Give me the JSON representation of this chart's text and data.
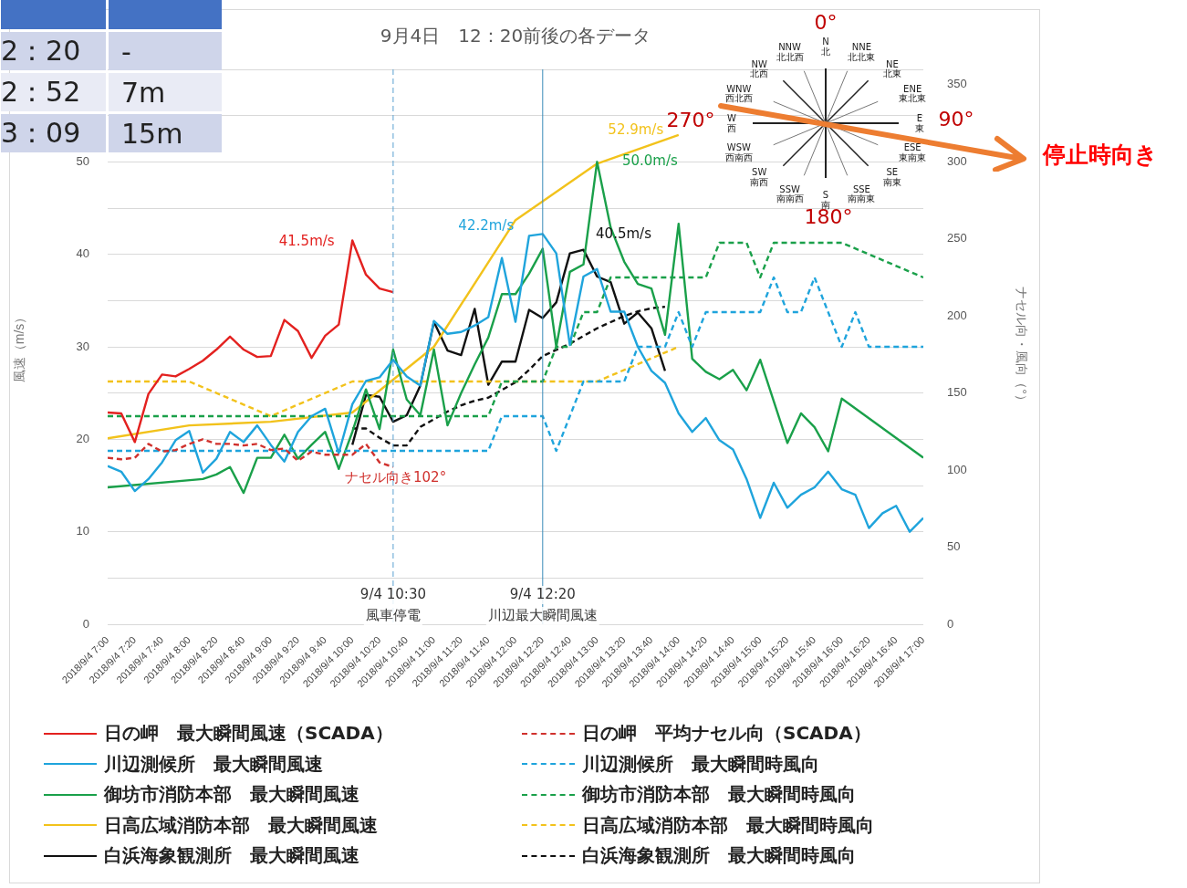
{
  "chart_data": {
    "type": "line",
    "title": "9月4日　12：20前後の各データ",
    "ylabel": "風速（m/s）",
    "y2label": "ナセル向・風向（°）",
    "xlim": [
      "2018-09-04T07:00",
      "2018-09-04T17:00"
    ],
    "xticks": [
      {
        "value": "2018-09-04T07:00",
        "label": "2018/9/4 7:00"
      },
      {
        "value": "2018-09-04T07:20",
        "label": "2018/9/4 7:20"
      },
      {
        "value": "2018-09-04T07:40",
        "label": "2018/9/4 7:40"
      },
      {
        "value": "2018-09-04T08:00",
        "label": "2018/9/4 8:00"
      },
      {
        "value": "2018-09-04T08:20",
        "label": "2018/9/4 8:20"
      },
      {
        "value": "2018-09-04T08:40",
        "label": "2018/9/4 8:40"
      },
      {
        "value": "2018-09-04T09:00",
        "label": "2018/9/4 9:00"
      },
      {
        "value": "2018-09-04T09:20",
        "label": "2018/9/4 9:20"
      },
      {
        "value": "2018-09-04T09:40",
        "label": "2018/9/4 9:40"
      },
      {
        "value": "2018-09-04T10:00",
        "label": "2018/9/4 10:00"
      },
      {
        "value": "2018-09-04T10:20",
        "label": "2018/9/4 10:20"
      },
      {
        "value": "2018-09-04T10:40",
        "label": "2018/9/4 10:40"
      },
      {
        "value": "2018-09-04T11:00",
        "label": "2018/9/4 11:00"
      },
      {
        "value": "2018-09-04T11:20",
        "label": "2018/9/4 11:20"
      },
      {
        "value": "2018-09-04T11:40",
        "label": "2018/9/4 11:40"
      },
      {
        "value": "2018-09-04T12:00",
        "label": "2018/9/4 12:00"
      },
      {
        "value": "2018-09-04T12:20",
        "label": "2018/9/4 12:20"
      },
      {
        "value": "2018-09-04T12:40",
        "label": "2018/9/4 12:40"
      },
      {
        "value": "2018-09-04T13:00",
        "label": "2018/9/4 13:00"
      },
      {
        "value": "2018-09-04T13:20",
        "label": "2018/9/4 13:20"
      },
      {
        "value": "2018-09-04T13:40",
        "label": "2018/9/4 13:40"
      },
      {
        "value": "2018-09-04T14:00",
        "label": "2018/9/4 14:00"
      },
      {
        "value": "2018-09-04T14:20",
        "label": "2018/9/4 14:20"
      },
      {
        "value": "2018-09-04T14:40",
        "label": "2018/9/4 14:40"
      },
      {
        "value": "2018-09-04T15:00",
        "label": "2018/9/4 15:00"
      },
      {
        "value": "2018-09-04T15:20",
        "label": "2018/9/4 15:20"
      },
      {
        "value": "2018-09-04T15:40",
        "label": "2018/9/4 15:40"
      },
      {
        "value": "2018-09-04T16:00",
        "label": "2018/9/4 16:00"
      },
      {
        "value": "2018-09-04T16:20",
        "label": "2018/9/4 16:20"
      },
      {
        "value": "2018-09-04T16:40",
        "label": "2018/9/4 16:40"
      },
      {
        "value": "2018-09-04T17:00",
        "label": "2018/9/4 17:00"
      }
    ],
    "ylim": [
      0,
      60
    ],
    "yticks": [
      0,
      {
        "value": 5,
        "label": null
      },
      10,
      {
        "value": 15,
        "label": null
      },
      20,
      {
        "value": 25,
        "label": null
      },
      30,
      {
        "value": 35,
        "label": null
      },
      40,
      {
        "value": 45,
        "label": null
      },
      50,
      {
        "value": 55,
        "label": null
      },
      {
        "value": 60,
        "label": null
      }
    ],
    "y2lim": [
      0,
      360
    ],
    "y2ticks": [
      0,
      50,
      100,
      150,
      200,
      250,
      300,
      350
    ],
    "grid": "y",
    "legend": "bottom",
    "marker": "none",
    "series": [
      {
        "name": "日の岬　最大瞬間風速（SCADA）",
        "color": "#e3211f",
        "line_style": "solid",
        "x": [
          "2018-09-04T07:00",
          "2018-09-04T07:10",
          "2018-09-04T07:20",
          "2018-09-04T07:30",
          "2018-09-04T07:40",
          "2018-09-04T07:50",
          "2018-09-04T08:00",
          "2018-09-04T08:10",
          "2018-09-04T08:20",
          "2018-09-04T08:30",
          "2018-09-04T08:40",
          "2018-09-04T08:50",
          "2018-09-04T09:00",
          "2018-09-04T09:10",
          "2018-09-04T09:20",
          "2018-09-04T09:30",
          "2018-09-04T09:40",
          "2018-09-04T09:50",
          "2018-09-04T10:00",
          "2018-09-04T10:10",
          "2018-09-04T10:20",
          "2018-09-04T10:30"
        ],
        "values": [
          22.9,
          22.8,
          19.7,
          24.9,
          27.0,
          26.8,
          27.6,
          28.5,
          29.7,
          31.1,
          29.7,
          28.9,
          29.0,
          32.9,
          31.7,
          28.8,
          31.2,
          32.4,
          41.5,
          37.8,
          36.3,
          35.9
        ]
      },
      {
        "name": "日の岬　平均ナセル向（SCADA）",
        "color": "#d0312d",
        "line_style": "dashed",
        "axis": "y2",
        "x": [
          "2018-09-04T07:00",
          "2018-09-04T07:10",
          "2018-09-04T07:20",
          "2018-09-04T07:30",
          "2018-09-04T07:40",
          "2018-09-04T07:50",
          "2018-09-04T08:00",
          "2018-09-04T08:10",
          "2018-09-04T08:20",
          "2018-09-04T08:30",
          "2018-09-04T08:40",
          "2018-09-04T08:50",
          "2018-09-04T09:00",
          "2018-09-04T09:10",
          "2018-09-04T09:20",
          "2018-09-04T09:30",
          "2018-09-04T09:40",
          "2018-09-04T09:50",
          "2018-09-04T10:00",
          "2018-09-04T10:10",
          "2018-09-04T10:20",
          "2018-09-04T10:30"
        ],
        "values": [
          108,
          107,
          108,
          117,
          112,
          113,
          117,
          120,
          117,
          117,
          116,
          117,
          113,
          114,
          106,
          112,
          110,
          110,
          110,
          117,
          105,
          102
        ]
      },
      {
        "name": "川辺測候所　最大瞬間風速",
        "color": "#1fa4dc",
        "line_style": "solid",
        "x": [
          "2018-09-04T07:00",
          "2018-09-04T07:10",
          "2018-09-04T07:20",
          "2018-09-04T07:30",
          "2018-09-04T07:40",
          "2018-09-04T07:50",
          "2018-09-04T08:00",
          "2018-09-04T08:10",
          "2018-09-04T08:20",
          "2018-09-04T08:30",
          "2018-09-04T08:40",
          "2018-09-04T08:50",
          "2018-09-04T09:00",
          "2018-09-04T09:10",
          "2018-09-04T09:20",
          "2018-09-04T09:30",
          "2018-09-04T09:40",
          "2018-09-04T09:50",
          "2018-09-04T10:00",
          "2018-09-04T10:10",
          "2018-09-04T10:20",
          "2018-09-04T10:30",
          "2018-09-04T10:40",
          "2018-09-04T10:50",
          "2018-09-04T11:00",
          "2018-09-04T11:10",
          "2018-09-04T11:20",
          "2018-09-04T11:30",
          "2018-09-04T11:40",
          "2018-09-04T11:50",
          "2018-09-04T12:00",
          "2018-09-04T12:10",
          "2018-09-04T12:20",
          "2018-09-04T12:30",
          "2018-09-04T12:40",
          "2018-09-04T12:50",
          "2018-09-04T13:00",
          "2018-09-04T13:10",
          "2018-09-04T13:20",
          "2018-09-04T13:30",
          "2018-09-04T13:40",
          "2018-09-04T13:50",
          "2018-09-04T14:00",
          "2018-09-04T14:10",
          "2018-09-04T14:20",
          "2018-09-04T14:30",
          "2018-09-04T14:40",
          "2018-09-04T14:50",
          "2018-09-04T15:00",
          "2018-09-04T15:10",
          "2018-09-04T15:20",
          "2018-09-04T15:30",
          "2018-09-04T15:40",
          "2018-09-04T15:50",
          "2018-09-04T16:00",
          "2018-09-04T16:10",
          "2018-09-04T16:20",
          "2018-09-04T16:30",
          "2018-09-04T16:40",
          "2018-09-04T16:50",
          "2018-09-04T17:00"
        ],
        "values": [
          17.1,
          16.5,
          14.4,
          15.7,
          17.5,
          19.9,
          20.9,
          16.4,
          17.9,
          20.8,
          19.7,
          21.5,
          19.4,
          17.6,
          20.8,
          22.5,
          23.3,
          18.5,
          23.8,
          26.3,
          26.7,
          28.6,
          26.8,
          25.8,
          32.8,
          31.4,
          31.6,
          32.3,
          33.2,
          39.6,
          32.7,
          42.0,
          42.2,
          40.1,
          30.2,
          37.6,
          38.4,
          33.8,
          33.8,
          30.0,
          27.4,
          26.1,
          22.8,
          20.8,
          22.3,
          19.9,
          18.9,
          15.7,
          11.5,
          15.3,
          12.6,
          14.0,
          14.8,
          16.5,
          14.6,
          14.0,
          10.4,
          12.0,
          12.8,
          10.0,
          11.5
        ]
      },
      {
        "name": "川辺測候所　最大瞬間時風向",
        "color": "#1fa4dc",
        "line_style": "dashed",
        "axis": "y2",
        "x": [
          "2018-09-04T07:00",
          "2018-09-04T11:40",
          "2018-09-04T11:50",
          "2018-09-04T12:20",
          "2018-09-04T12:30",
          "2018-09-04T12:40",
          "2018-09-04T12:50",
          "2018-09-04T13:20",
          "2018-09-04T13:30",
          "2018-09-04T13:50",
          "2018-09-04T14:00",
          "2018-09-04T14:10",
          "2018-09-04T14:20",
          "2018-09-04T15:00",
          "2018-09-04T15:10",
          "2018-09-04T15:20",
          "2018-09-04T15:30",
          "2018-09-04T15:40",
          "2018-09-04T15:50",
          "2018-09-04T16:00",
          "2018-09-04T16:10",
          "2018-09-04T16:20",
          "2018-09-04T17:00"
        ],
        "values": [
          112.5,
          112.5,
          135,
          135,
          112.5,
          135,
          157.5,
          157.5,
          180,
          180,
          202.5,
          180,
          202.5,
          202.5,
          225,
          202.5,
          202.5,
          225,
          202.5,
          180,
          202.5,
          180,
          180
        ]
      },
      {
        "name": "御坊市消防本部　最大瞬間風速",
        "color": "#1aa04a",
        "line_style": "solid",
        "x": [
          "2018-09-04T07:00",
          "2018-09-04T08:10",
          "2018-09-04T08:20",
          "2018-09-04T08:30",
          "2018-09-04T08:40",
          "2018-09-04T08:50",
          "2018-09-04T09:00",
          "2018-09-04T09:10",
          "2018-09-04T09:20",
          "2018-09-04T09:30",
          "2018-09-04T09:40",
          "2018-09-04T09:50",
          "2018-09-04T10:00",
          "2018-09-04T10:10",
          "2018-09-04T10:20",
          "2018-09-04T10:30",
          "2018-09-04T10:40",
          "2018-09-04T10:50",
          "2018-09-04T11:00",
          "2018-09-04T11:10",
          "2018-09-04T11:20",
          "2018-09-04T11:30",
          "2018-09-04T11:40",
          "2018-09-04T11:50",
          "2018-09-04T12:00",
          "2018-09-04T12:10",
          "2018-09-04T12:20",
          "2018-09-04T12:30",
          "2018-09-04T12:40",
          "2018-09-04T12:50",
          "2018-09-04T13:00",
          "2018-09-04T13:10",
          "2018-09-04T13:20",
          "2018-09-04T13:30",
          "2018-09-04T13:40",
          "2018-09-04T13:50",
          "2018-09-04T14:00",
          "2018-09-04T14:10",
          "2018-09-04T14:20",
          "2018-09-04T14:30",
          "2018-09-04T14:40",
          "2018-09-04T14:50",
          "2018-09-04T15:00",
          "2018-09-04T15:20",
          "2018-09-04T15:30",
          "2018-09-04T15:40",
          "2018-09-04T15:50",
          "2018-09-04T16:00",
          "2018-09-04T17:00"
        ],
        "values": [
          14.8,
          15.7,
          16.2,
          17.0,
          14.2,
          18.0,
          18.0,
          20.5,
          17.9,
          19.4,
          20.8,
          16.8,
          20.8,
          25.4,
          21.1,
          29.7,
          24.3,
          22.6,
          29.7,
          21.5,
          25.0,
          28.1,
          31.0,
          35.7,
          35.7,
          37.9,
          40.6,
          30.0,
          38.1,
          38.9,
          50.0,
          42.9,
          39.2,
          36.8,
          36.3,
          31.3,
          43.3,
          28.7,
          27.3,
          26.5,
          27.5,
          25.3,
          28.6,
          19.6,
          22.8,
          21.3,
          18.7,
          24.4,
          18.0
        ]
      },
      {
        "name": "御坊市消防本部　最大瞬間時風向",
        "color": "#1aa04a",
        "line_style": "dashed",
        "axis": "y2",
        "x": [
          "2018-09-04T07:00",
          "2018-09-04T11:40",
          "2018-09-04T11:50",
          "2018-09-04T12:20",
          "2018-09-04T12:30",
          "2018-09-04T12:40",
          "2018-09-04T12:50",
          "2018-09-04T13:00",
          "2018-09-04T13:10",
          "2018-09-04T14:20",
          "2018-09-04T14:30",
          "2018-09-04T14:50",
          "2018-09-04T15:00",
          "2018-09-04T15:10",
          "2018-09-04T16:00",
          "2018-09-04T17:00"
        ],
        "values": [
          135,
          135,
          157.5,
          157.5,
          180,
          180,
          202.5,
          202.5,
          225,
          225,
          247.5,
          247.5,
          225,
          247.5,
          247.5,
          225
        ]
      },
      {
        "name": "日高広域消防本部　最大瞬間風速",
        "color": "#f2c21b",
        "line_style": "solid",
        "x": [
          "2018-09-04T07:00",
          "2018-09-04T08:00",
          "2018-09-04T09:00",
          "2018-09-04T10:00",
          "2018-09-04T11:00",
          "2018-09-04T12:00",
          "2018-09-04T13:00",
          "2018-09-04T14:00"
        ],
        "values": [
          20.1,
          21.5,
          21.9,
          22.9,
          30.0,
          43.7,
          49.8,
          52.9
        ]
      },
      {
        "name": "日高広域消防本部　最大瞬間時風向",
        "color": "#f2c21b",
        "line_style": "dashed",
        "axis": "y2",
        "x": [
          "2018-09-04T07:00",
          "2018-09-04T08:00",
          "2018-09-04T09:00",
          "2018-09-04T10:00",
          "2018-09-04T11:00",
          "2018-09-04T12:00",
          "2018-09-04T13:00",
          "2018-09-04T14:00"
        ],
        "values": [
          157.5,
          157.5,
          135,
          157.5,
          157.5,
          157.5,
          157.5,
          180
        ]
      },
      {
        "name": "白浜海象観測所　最大瞬間風速",
        "color": "#111111",
        "line_style": "solid",
        "x": [
          "2018-09-04T10:00",
          "2018-09-04T10:10",
          "2018-09-04T10:20",
          "2018-09-04T10:30",
          "2018-09-04T10:40",
          "2018-09-04T10:50",
          "2018-09-04T11:00",
          "2018-09-04T11:10",
          "2018-09-04T11:20",
          "2018-09-04T11:30",
          "2018-09-04T11:40",
          "2018-09-04T11:50",
          "2018-09-04T12:00",
          "2018-09-04T12:10",
          "2018-09-04T12:20",
          "2018-09-04T12:30",
          "2018-09-04T12:40",
          "2018-09-04T12:50",
          "2018-09-04T13:00",
          "2018-09-04T13:10",
          "2018-09-04T13:20",
          "2018-09-04T13:30",
          "2018-09-04T13:40",
          "2018-09-04T13:50"
        ],
        "values": [
          19.4,
          24.8,
          24.6,
          21.9,
          22.6,
          25.8,
          32.7,
          29.6,
          29.1,
          34.1,
          25.9,
          28.4,
          28.4,
          34.0,
          33.1,
          34.8,
          40.1,
          40.5,
          37.6,
          37.0,
          32.5,
          33.7,
          32.0,
          27.4
        ]
      },
      {
        "name": "白浜海象観測所　最大瞬間時風向",
        "color": "#111111",
        "line_style": "dashed",
        "axis": "y2",
        "x": [
          "2018-09-04T10:00",
          "2018-09-04T10:10",
          "2018-09-04T10:20",
          "2018-09-04T10:30",
          "2018-09-04T10:40",
          "2018-09-04T10:50",
          "2018-09-04T11:00",
          "2018-09-04T11:10",
          "2018-09-04T11:20",
          "2018-09-04T11:30",
          "2018-09-04T11:40",
          "2018-09-04T11:50",
          "2018-09-04T12:00",
          "2018-09-04T12:10",
          "2018-09-04T12:20",
          "2018-09-04T12:30",
          "2018-09-04T12:40",
          "2018-09-04T12:50",
          "2018-09-04T13:00",
          "2018-09-04T13:10",
          "2018-09-04T13:20",
          "2018-09-04T13:30",
          "2018-09-04T13:40",
          "2018-09-04T13:50"
        ],
        "values": [
          127,
          127,
          121,
          116,
          116,
          128,
          133,
          138,
          142,
          145,
          147,
          152,
          157,
          165,
          174,
          178,
          182,
          187,
          192,
          196,
          200,
          203,
          205,
          206
        ]
      }
    ],
    "ref_lines": [
      {
        "axis": "x",
        "value": "2018-09-04T10:30",
        "label": "9/4 10:30\n風車停電",
        "color": "#5aa0d0",
        "line_style": "dashed"
      },
      {
        "axis": "x",
        "value": "2018-09-04T12:20",
        "label": "9/4 12:20\n川辺最大瞬間風速",
        "color": "#3a8ab8",
        "line_style": "solid"
      }
    ],
    "annotations": [
      {
        "text": "41.5m/s",
        "x": "2018-09-04T10:00",
        "y": 41.5
      },
      {
        "text": "42.2m/s",
        "x": "2018-09-04T12:20",
        "y": 42.2
      },
      {
        "text": "40.5m/s",
        "x": "2018-09-04T12:50",
        "y": 40.5
      },
      {
        "text": "50.0m/s",
        "x": "2018-09-04T13:00",
        "y": 50.0
      },
      {
        "text": "52.9m/s",
        "x": "2018-09-04T14:00",
        "y": 52.9
      },
      "ナセル向き102°",
      "2：20",
      "-",
      "2：52",
      "7m",
      "3：09",
      "15m",
      "0°",
      "90°",
      "180°",
      "270°",
      "N\n北",
      "NNE\n北北東",
      "NE\n北東",
      "ENE\n東北東",
      "E\n東",
      "ESE\n東南東",
      "SE\n南東",
      "SSE\n南南東",
      "S\n南",
      "SSW\n南南西",
      "SW\n南西",
      "WSW\n西南西",
      "W\n西",
      "WNW\n西北西",
      "NW\n北西",
      "NNW\n北北西",
      "停止時向き"
    ]
  }
}
